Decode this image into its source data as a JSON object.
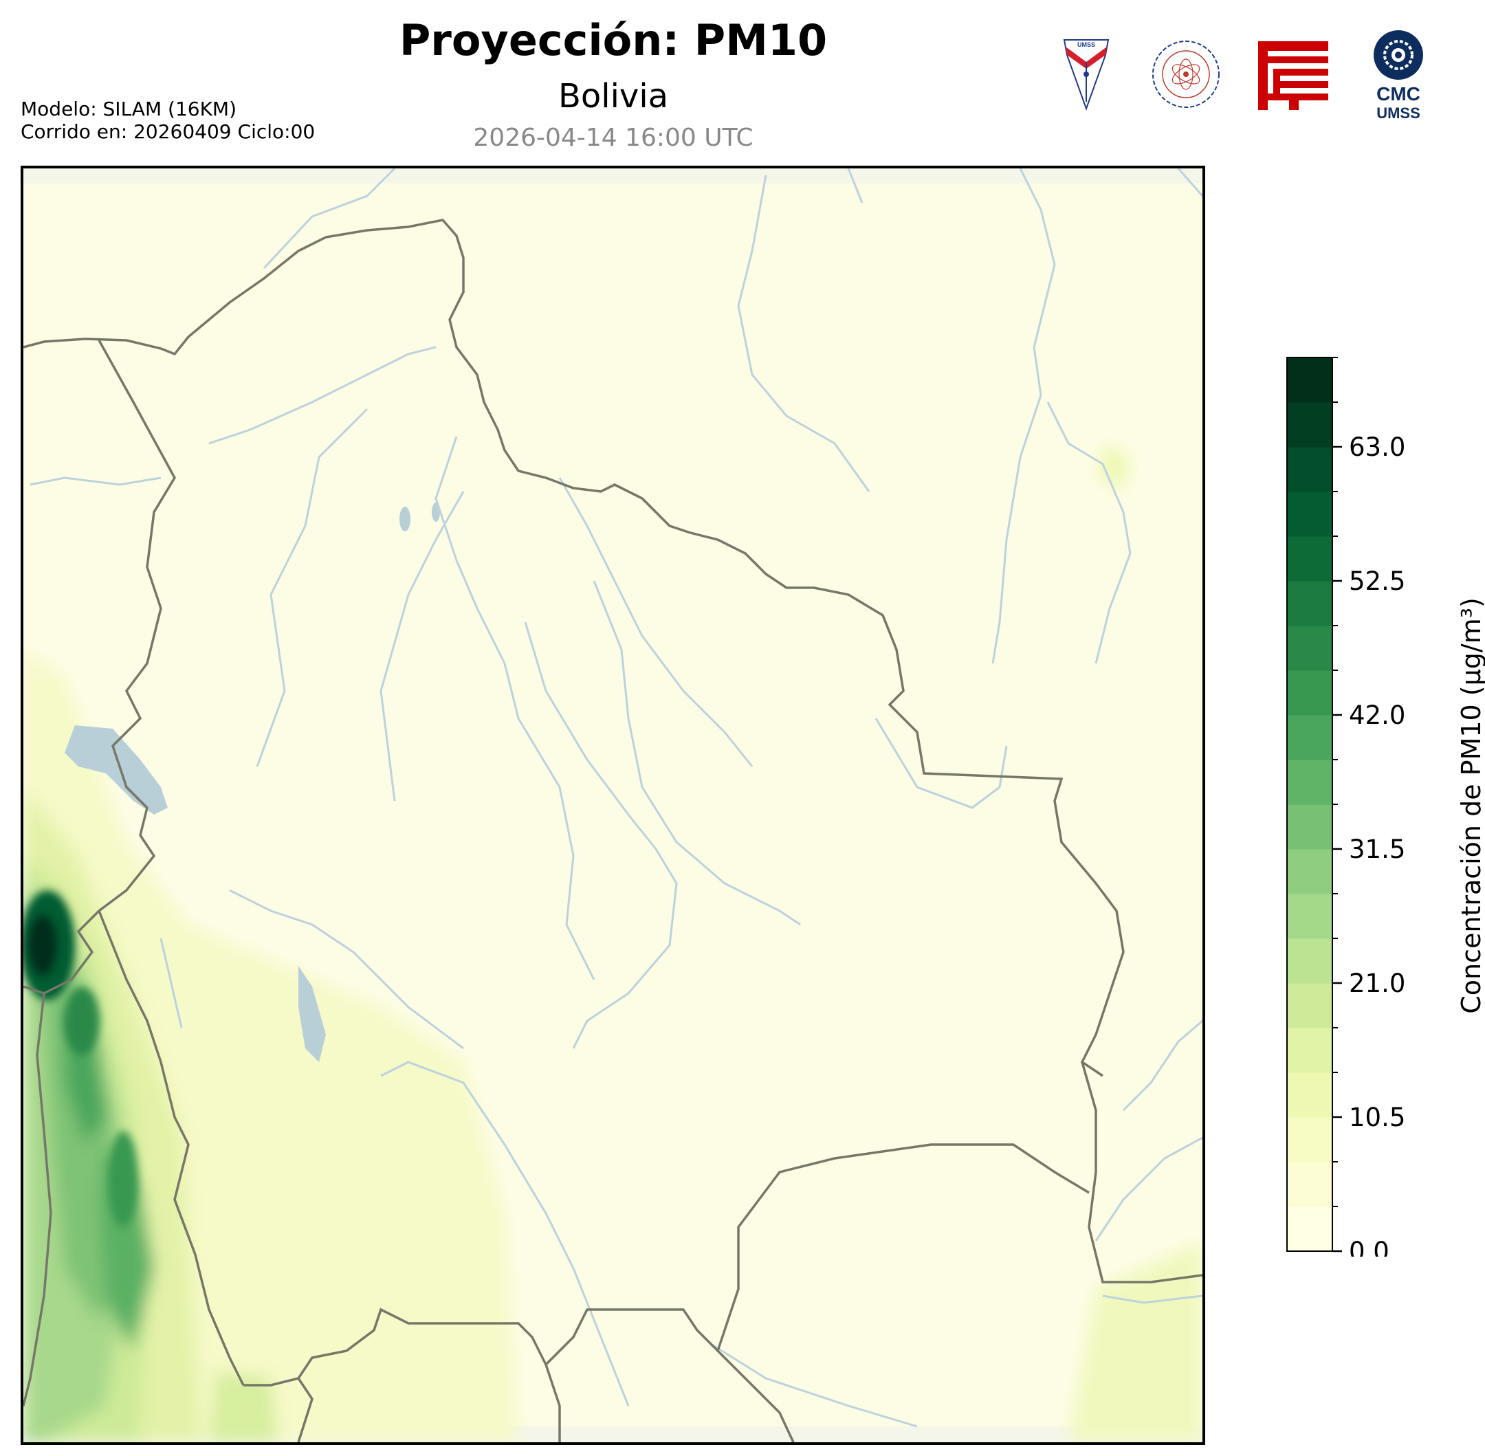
{
  "header": {
    "title": "Proyección: PM10",
    "subtitle": "Bolivia",
    "timestamp": "2026-04-14 16:00 UTC",
    "model_line1": "Modelo: SILAM (16KM)",
    "model_line2": "Corrido en: 20260409 Ciclo:00"
  },
  "logos": [
    {
      "name": "umss-shield-logo",
      "text": "UMSS"
    },
    {
      "name": "departamento-fisica-seal-logo",
      "text": "DEPARTAMENTO DE FÍSICA"
    },
    {
      "name": "red-fcyt-logo",
      "text": ""
    },
    {
      "name": "cmc-umss-logo",
      "text": "CMC UMSS"
    }
  ],
  "colorbar": {
    "label": "Concentración de PM10 (µg/m³)",
    "ticks": [
      "0.0",
      "10.5",
      "21.0",
      "31.5",
      "42.0",
      "52.5",
      "63.0"
    ],
    "min": 0,
    "max": 70,
    "colors": [
      "#ffffe5",
      "#fcfdd5",
      "#f7fcc4",
      "#eef8b3",
      "#e1f3a6",
      "#cfeb9a",
      "#bbe391",
      "#a5d98a",
      "#8fcd80",
      "#78c174",
      "#60b468",
      "#4aa65c",
      "#389850",
      "#2a8948",
      "#1b7a40",
      "#0d6b38",
      "#045c32",
      "#034e2a",
      "#023f22",
      "#012f1a"
    ]
  }
}
